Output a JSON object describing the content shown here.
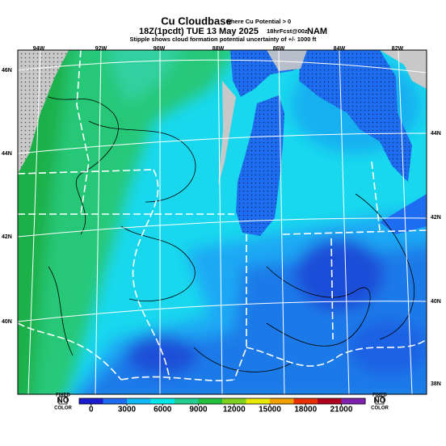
{
  "header": {
    "title": "Cu Cloudbase",
    "title_note": "where Cu Potential > 0",
    "line2": "18Z(1pcdt) TUE 13 May 2025",
    "line2_note": "18hrFcst@00z",
    "line2_model": "NAM",
    "line3": "Stipple shows cloud formation potential uncertainty of +/- 1000 ft"
  },
  "map": {
    "lon_labels": [
      "94W",
      "92W",
      "90W",
      "88W",
      "86W",
      "84W",
      "82W"
    ],
    "lat_labels_left": [
      "46N",
      "44N",
      "42N",
      "40N"
    ],
    "lat_labels_right": [
      "44N",
      "42N",
      "40N",
      "38N"
    ]
  },
  "colorbar": {
    "left_label": [
      "FIXED",
      "NO",
      "COLOR"
    ],
    "right_label": [
      "FIXED",
      "NO",
      "COLOR"
    ],
    "clim": [
      -1000,
      23000
    ],
    "ticks": [
      0,
      3000,
      6000,
      9000,
      12000,
      15000,
      18000,
      21000
    ],
    "colors": [
      "#1a1ad0",
      "#1e6cf0",
      "#10b8f4",
      "#00e8e8",
      "#20d090",
      "#22c040",
      "#80d020",
      "#e8e800",
      "#f0a000",
      "#e83000",
      "#b00020",
      "#8020b0"
    ]
  }
}
